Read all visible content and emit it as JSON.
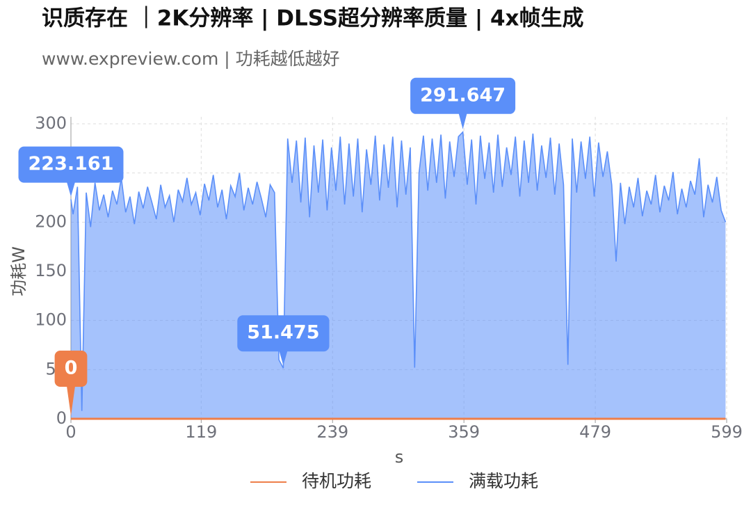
{
  "chart_data": {
    "type": "line",
    "title": "识质存在 ｜2K分辨率 | DLSS超分辨率质量 | 4x帧生成",
    "subtitle": "www.expreview.com | 功耗越低越好",
    "x_label": "s",
    "y_label": "功耗W",
    "xlim": [
      0,
      599
    ],
    "xticks": [
      0,
      119,
      239,
      359,
      479,
      599
    ],
    "ylim": [
      0,
      300
    ],
    "yticks": [
      0,
      50,
      100,
      150,
      200,
      250,
      300
    ],
    "grid": true,
    "legend": "bottom",
    "area": true,
    "x": [
      0,
      2,
      6,
      10,
      14,
      18,
      22,
      26,
      30,
      34,
      38,
      42,
      46,
      50,
      54,
      58,
      62,
      66,
      70,
      74,
      78,
      82,
      86,
      90,
      94,
      98,
      102,
      106,
      110,
      114,
      118,
      122,
      126,
      130,
      134,
      138,
      142,
      146,
      150,
      154,
      158,
      162,
      166,
      170,
      174,
      178,
      182,
      186,
      190,
      194,
      198,
      202,
      206,
      210,
      214,
      218,
      222,
      226,
      230,
      234,
      238,
      242,
      246,
      250,
      254,
      258,
      262,
      266,
      270,
      274,
      278,
      282,
      286,
      290,
      294,
      298,
      302,
      306,
      310,
      314,
      318,
      322,
      326,
      330,
      334,
      338,
      342,
      346,
      350,
      354,
      358,
      362,
      366,
      370,
      374,
      378,
      382,
      386,
      390,
      394,
      398,
      402,
      406,
      410,
      414,
      418,
      422,
      426,
      430,
      434,
      438,
      442,
      446,
      450,
      454,
      458,
      462,
      466,
      470,
      474,
      478,
      482,
      486,
      490,
      494,
      498,
      502,
      506,
      510,
      514,
      518,
      522,
      526,
      530,
      534,
      538,
      542,
      546,
      550,
      554,
      558,
      562,
      566,
      570,
      574,
      578,
      582,
      586,
      590,
      594,
      598
    ],
    "series": [
      {
        "name": "待机功耗",
        "color": "#ee7f4a",
        "values": [
          0,
          0,
          0,
          0,
          0,
          0,
          0,
          0,
          0,
          0,
          0,
          0,
          0,
          0,
          0,
          0,
          0,
          0,
          0,
          0,
          0,
          0,
          0,
          0,
          0,
          0,
          0,
          0,
          0,
          0,
          0,
          0,
          0,
          0,
          0,
          0,
          0,
          0,
          0,
          0,
          0,
          0,
          0,
          0,
          0,
          0,
          0,
          0,
          0,
          0,
          0,
          0,
          0,
          0,
          0,
          0,
          0,
          0,
          0,
          0,
          0,
          0,
          0,
          0,
          0,
          0,
          0,
          0,
          0,
          0,
          0,
          0,
          0,
          0,
          0,
          0,
          0,
          0,
          0,
          0,
          0,
          0,
          0,
          0,
          0,
          0,
          0,
          0,
          0,
          0,
          0,
          0,
          0,
          0,
          0,
          0,
          0,
          0,
          0,
          0,
          0,
          0,
          0,
          0,
          0,
          0,
          0,
          0,
          0,
          0,
          0,
          0,
          0,
          0,
          0,
          0,
          0,
          0,
          0,
          0,
          0,
          0,
          0,
          0,
          0,
          0,
          0,
          0,
          0,
          0,
          0,
          0,
          0,
          0,
          0,
          0,
          0,
          0,
          0,
          0,
          0,
          0,
          0,
          0,
          0,
          0,
          0,
          0,
          0,
          0,
          0
        ]
      },
      {
        "name": "满载功耗",
        "color": "#5b8ff9",
        "values": [
          223.161,
          208,
          236,
          8,
          230,
          195,
          240,
          212,
          228,
          205,
          232,
          218,
          245,
          210,
          226,
          198,
          231,
          214,
          236,
          220,
          203,
          238,
          215,
          227,
          200,
          233,
          221,
          245,
          218,
          230,
          207,
          239,
          222,
          248,
          215,
          233,
          203,
          237,
          226,
          250,
          212,
          235,
          218,
          241,
          224,
          205,
          238,
          230,
          60,
          51.475,
          285,
          240,
          283,
          220,
          286,
          205,
          278,
          230,
          284,
          212,
          276,
          232,
          287,
          218,
          280,
          226,
          285,
          210,
          274,
          238,
          288,
          222,
          279,
          235,
          287,
          215,
          283,
          228,
          276,
          52,
          250,
          288,
          232,
          285,
          240,
          289,
          224,
          282,
          246,
          287,
          291.647,
          238,
          284,
          218,
          288,
          244,
          281,
          230,
          289,
          236,
          276,
          248,
          287,
          226,
          283,
          240,
          290,
          232,
          278,
          245,
          286,
          228,
          280,
          238,
          55,
          285,
          230,
          282,
          244,
          287,
          226,
          281,
          246,
          272,
          238,
          160,
          240,
          198,
          236,
          215,
          245,
          206,
          232,
          218,
          248,
          210,
          237,
          222,
          251,
          208,
          234,
          215,
          242,
          228,
          265,
          205,
          238,
          220,
          246,
          212,
          200
        ]
      }
    ]
  }
}
